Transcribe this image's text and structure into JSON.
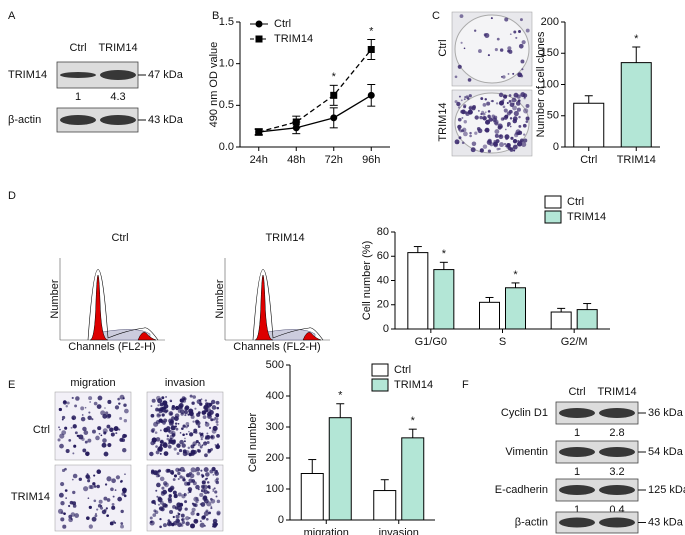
{
  "panel_labels": [
    "A",
    "B",
    "C",
    "D",
    "E",
    "F"
  ],
  "blot_a": {
    "columns": [
      "Ctrl",
      "TRIM14"
    ],
    "rows": [
      {
        "label": "TRIM14",
        "size": "47 kDa",
        "ratios": [
          1,
          4.3
        ]
      },
      {
        "label": "β-actin",
        "size": "43 kDa"
      }
    ]
  },
  "images_c": {
    "rows": [
      "Ctrl",
      "TRIM14"
    ]
  },
  "flow_d": {
    "samples": [
      "Ctrl",
      "TRIM14"
    ],
    "x_label": "Channels (FL2-H)",
    "y_label": "Number"
  },
  "images_e": {
    "columns": [
      "migration",
      "invasion"
    ],
    "rows": [
      "Ctrl",
      "TRIM14"
    ]
  },
  "blot_f": {
    "columns": [
      "Ctrl",
      "TRIM14"
    ],
    "rows": [
      {
        "label": "Cyclin D1",
        "size": "36 kDa",
        "ratios": [
          1,
          2.8
        ]
      },
      {
        "label": "Vimentin",
        "size": "54 kDa",
        "ratios": [
          1,
          3.2
        ]
      },
      {
        "label": "E-cadherin",
        "size": "125 kDa",
        "ratios": [
          1,
          0.4
        ]
      },
      {
        "label": "β-actin",
        "size": "43 kDa"
      }
    ]
  },
  "chart_data": [
    {
      "type": "line",
      "y_label": "490 nm OD value",
      "categories": [
        "24h",
        "48h",
        "72h",
        "96h"
      ],
      "series": [
        {
          "name": "Ctrl",
          "color": "#000000",
          "marker": "circle",
          "dashed": false,
          "values": [
            0.18,
            0.23,
            0.35,
            0.62
          ],
          "errors": [
            0.04,
            0.07,
            0.12,
            0.13
          ]
        },
        {
          "name": "TRIM14",
          "color": "#000000",
          "marker": "square",
          "dashed": true,
          "values": [
            0.18,
            0.3,
            0.62,
            1.17
          ],
          "errors": [
            0.03,
            0.07,
            0.12,
            0.12
          ],
          "significance": [
            null,
            null,
            "*",
            "*"
          ]
        }
      ],
      "ylim": [
        0,
        1.5
      ],
      "yticks": [
        {
          "value": 0,
          "label": "0.0"
        },
        0.5,
        {
          "value": 1,
          "label": "1.0"
        },
        1.5
      ],
      "legend": "upper left"
    },
    {
      "type": "bar",
      "y_label": "Number of cell clones",
      "categories": [
        "Ctrl",
        "TRIM14"
      ],
      "values": [
        70,
        135
      ],
      "errors": [
        12,
        25
      ],
      "colors": [
        "#ffffff",
        "#b3e6d6"
      ],
      "significance": [
        null,
        "*"
      ],
      "ylim": [
        0,
        200
      ],
      "yticks": [
        0,
        50,
        100,
        150,
        200
      ]
    },
    {
      "type": "bar",
      "y_label": "Cell number (%)",
      "categories": [
        "G1/G0",
        "S",
        "G2/M"
      ],
      "series": [
        {
          "name": "Ctrl",
          "color": "#ffffff",
          "values": [
            63,
            22,
            14
          ],
          "errors": [
            5,
            4,
            3
          ]
        },
        {
          "name": "TRIM14",
          "color": "#b3e6d6",
          "values": [
            49,
            34,
            16
          ],
          "errors": [
            6,
            4,
            5
          ],
          "significance": [
            "*",
            "*",
            null
          ]
        }
      ],
      "ylim": [
        0,
        80
      ],
      "yticks": [
        0,
        20,
        40,
        60,
        80
      ],
      "legend": "upper right"
    },
    {
      "type": "bar",
      "y_label": "Cell number",
      "categories": [
        "migration",
        "invasion"
      ],
      "series": [
        {
          "name": "Ctrl",
          "color": "#ffffff",
          "values": [
            150,
            95
          ],
          "errors": [
            45,
            35
          ]
        },
        {
          "name": "TRIM14",
          "color": "#b3e6d6",
          "values": [
            330,
            265
          ],
          "errors": [
            45,
            28
          ],
          "significance": [
            "*",
            "*"
          ]
        }
      ],
      "ylim": [
        0,
        500
      ],
      "yticks": [
        0,
        100,
        200,
        300,
        400,
        500
      ],
      "legend": "upper right"
    }
  ]
}
